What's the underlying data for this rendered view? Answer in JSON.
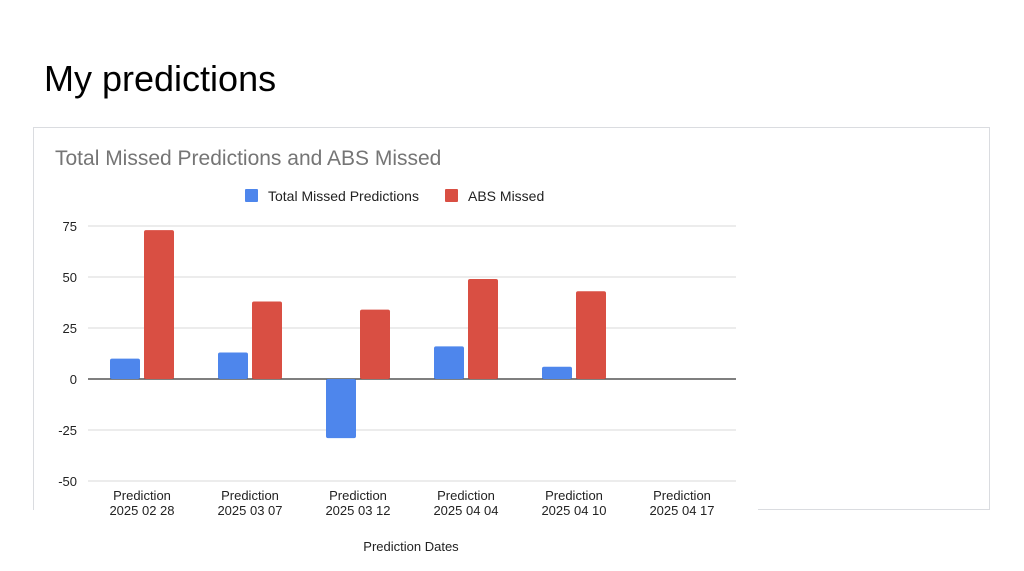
{
  "slide": {
    "title": "My predictions"
  },
  "chart_data": {
    "type": "bar",
    "title": "Total Missed Predictions and ABS Missed",
    "xlabel": "Prediction Dates",
    "ylabel": "",
    "ylim": [
      -50,
      75
    ],
    "yticks": [
      75,
      50,
      25,
      0,
      -25,
      -50
    ],
    "ytick_labels": [
      "75",
      "50",
      "25",
      "0",
      "-25",
      "-50"
    ],
    "categories": [
      [
        "Prediction",
        "2025 02 28"
      ],
      [
        "Prediction",
        "2025 03 07"
      ],
      [
        "Prediction",
        "2025 03 12"
      ],
      [
        "Prediction",
        "2025 04 04"
      ],
      [
        "Prediction",
        "2025 04 10"
      ],
      [
        "Prediction",
        "2025 04 17"
      ]
    ],
    "series": [
      {
        "name": "Total Missed Predictions",
        "color": "#4e86ec",
        "values": [
          10,
          13,
          -29,
          16,
          6,
          null
        ]
      },
      {
        "name": "ABS Missed",
        "color": "#d94f43",
        "values": [
          73,
          38,
          34,
          49,
          43,
          null
        ]
      }
    ],
    "legend_position": "top",
    "grid": true
  }
}
